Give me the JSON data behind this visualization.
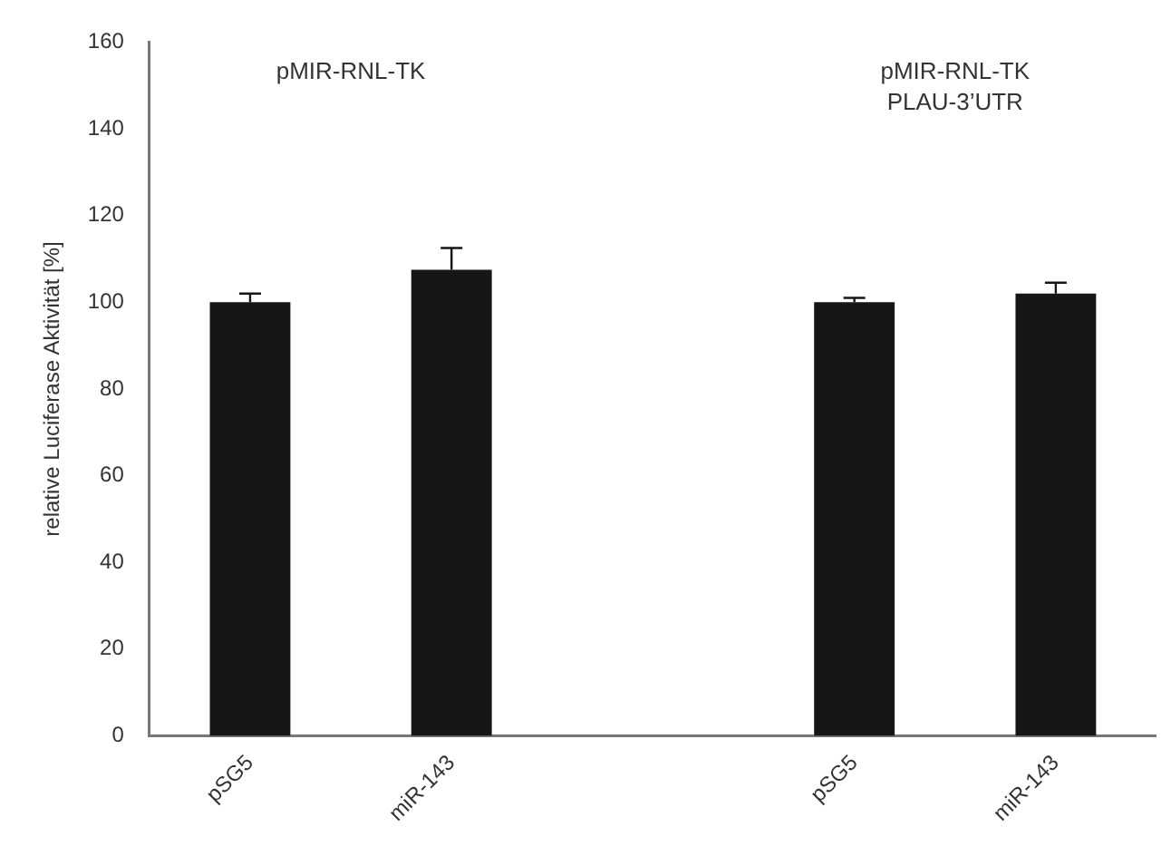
{
  "chart_data": {
    "type": "bar",
    "ylabel": "relative Luciferase Aktivität [%]",
    "categories": [
      "pSG5",
      "miR-143",
      null,
      "pSG5",
      "miR-143"
    ],
    "values": [
      100,
      107.5,
      null,
      100,
      102
    ],
    "errors": [
      2,
      5,
      null,
      1,
      2.5
    ],
    "color": "#161617",
    "ylim": [
      0,
      160
    ],
    "yticks": [
      0,
      20,
      40,
      60,
      80,
      100,
      120,
      140,
      160
    ],
    "grid": false,
    "legend": false,
    "annotations": [
      "pMIR-RNL-TK",
      "pMIR-RNL-TK\nPLAU-3’UTR"
    ]
  }
}
